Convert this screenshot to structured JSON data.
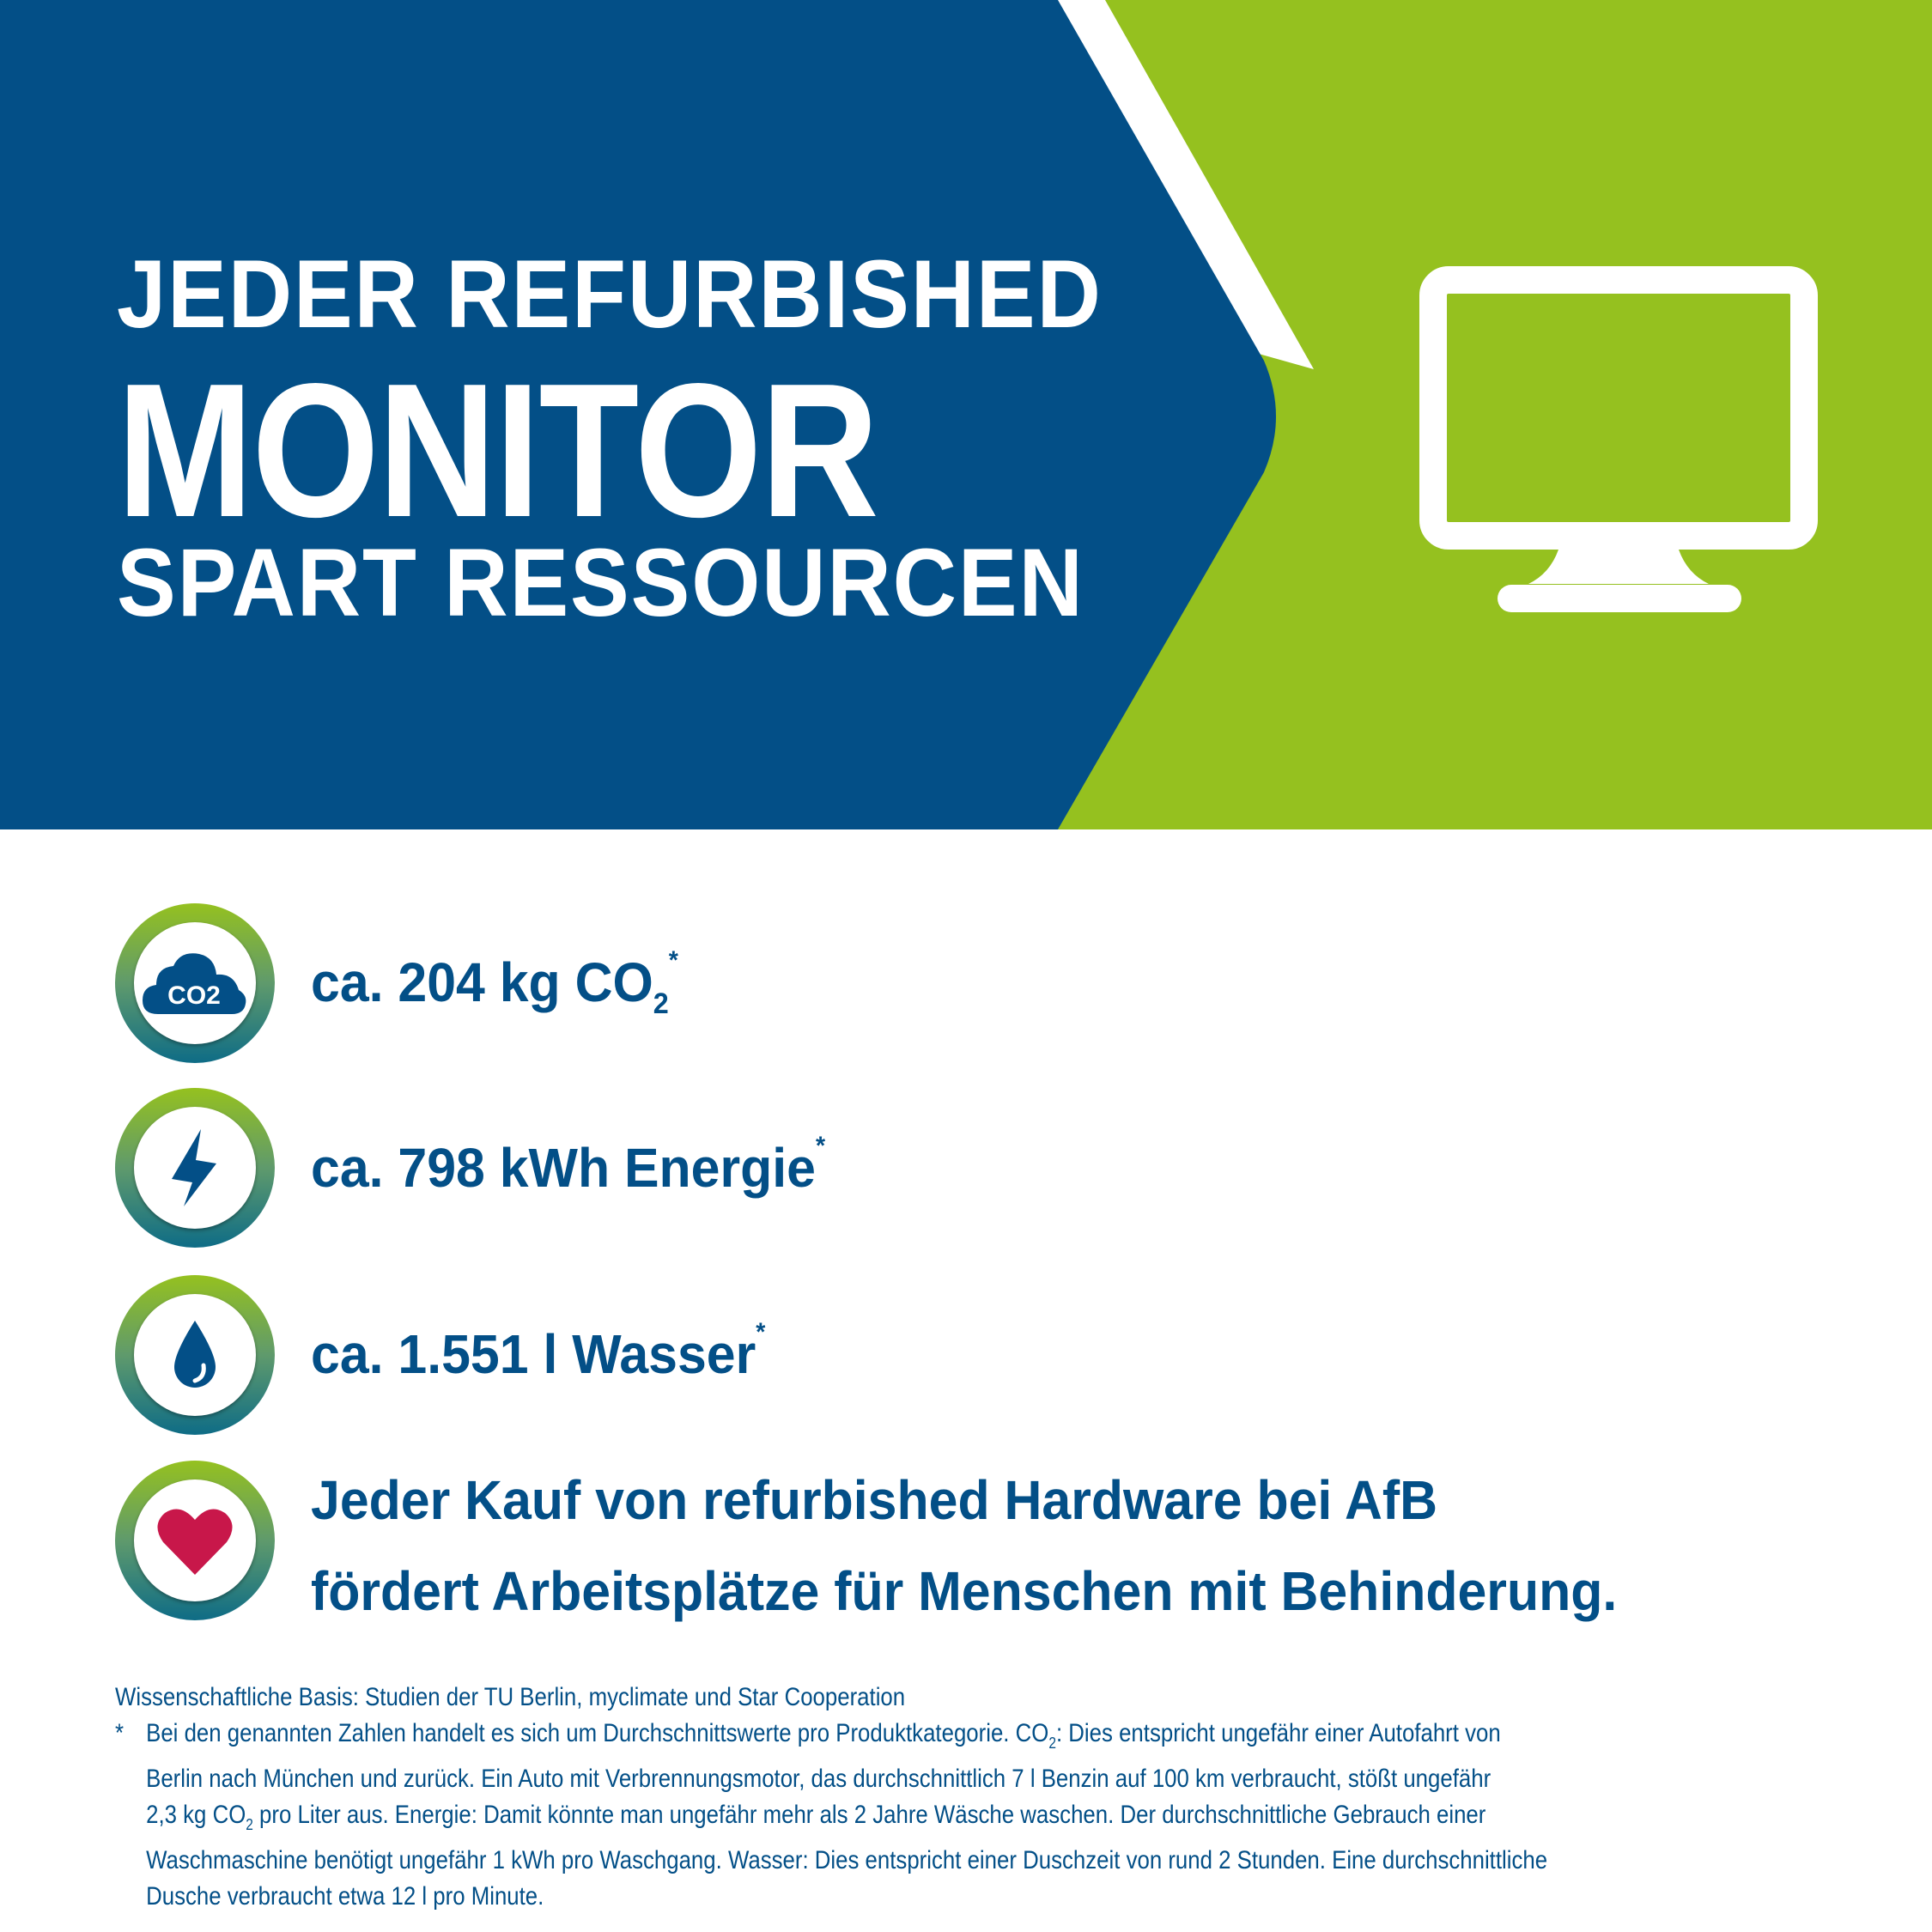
{
  "colors": {
    "brand_blue": "#034f87",
    "brand_green": "#95c11f",
    "heart_red": "#c8174a",
    "ring_bottom": "#0e6c86"
  },
  "headline": {
    "line1": "JEDER REFURBISHED",
    "line2": "MONITOR",
    "line3": "SPART RESSOURCEN"
  },
  "hero_icon": "monitor-icon",
  "stats": [
    {
      "icon": "co2-cloud-icon",
      "icon_text": "CO2",
      "prefix": "ca. 204 kg CO",
      "sub": "2",
      "mark": "*"
    },
    {
      "icon": "lightning-icon",
      "text": "ca. 798 kWh Energie",
      "mark": "*"
    },
    {
      "icon": "water-drop-icon",
      "text": "ca. 1.551 l Wasser",
      "mark": "*"
    },
    {
      "icon": "heart-icon",
      "line1": "Jeder Kauf von refurbished Hardware bei AfB",
      "line2": "fördert Arbeitsplätze für Menschen mit Behinderung."
    }
  ],
  "footnote": {
    "basis": "Wissenschaftliche Basis: Studien der TU Berlin, myclimate und Star Cooperation",
    "star": "*",
    "l1a": "Bei den genannten Zahlen handelt es sich um Durchschnittswerte pro Produktkategorie. CO",
    "sub": "2",
    "l1b": ": Dies entspricht ungefähr einer Autofahrt von",
    "l2": "Berlin nach München und zurück. Ein Auto mit Verbrennungsmotor, das durchschnittlich 7 l Benzin auf 100 km verbraucht, stößt ungefähr",
    "l3a": "2,3 kg CO",
    "l3b": " pro Liter aus. Energie: Damit könnte man ungefähr mehr als 2 Jahre Wäsche waschen. Der durchschnittliche Gebrauch einer",
    "l4": "Waschmaschine benötigt ungefähr 1 kWh pro Waschgang. Wasser: Dies entspricht einer Duschzeit von rund 2 Stunden. Eine durchschnittliche",
    "l5": "Dusche verbraucht etwa 12 l pro Minute."
  }
}
